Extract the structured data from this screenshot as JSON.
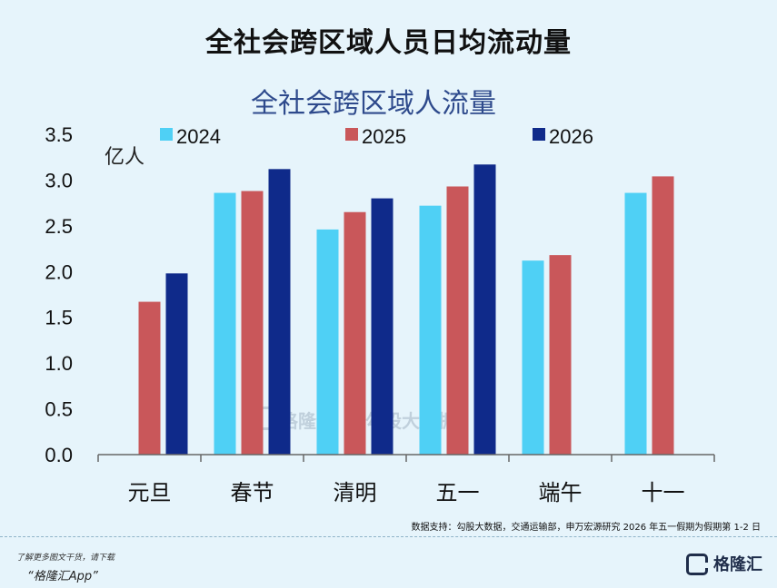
{
  "page_title": "全社会跨区域人员日均流动量",
  "source_note": "数据支持：勾股大数据，交通运输部，申万宏源研究  2026 年五一假期为假期第 1-2 日",
  "footer": {
    "line1": "了解更多图文干货，请下载",
    "line2": "“格隆汇App”",
    "logo_text": "格隆汇"
  },
  "watermark": {
    "brand": "格隆汇",
    "partner": "勾股大数据"
  },
  "colors": {
    "2024": "#4fd0f5",
    "2025": "#c9575a",
    "2026": "#0f2a8a"
  },
  "chart_data": {
    "type": "bar",
    "title": "全社会跨区域人流量",
    "ylabel": "亿人",
    "xlabel": "",
    "ylim": [
      0,
      3.5
    ],
    "yticks": [
      "0.0",
      "0.5",
      "1.0",
      "1.5",
      "2.0",
      "2.5",
      "3.0",
      "3.5"
    ],
    "legend_position": "top",
    "categories": [
      "元旦",
      "春节",
      "清明",
      "五一",
      "端午",
      "十一"
    ],
    "series": [
      {
        "name": "2024",
        "values": [
          null,
          2.86,
          2.46,
          2.72,
          2.12,
          2.86
        ]
      },
      {
        "name": "2025",
        "values": [
          1.67,
          2.88,
          2.65,
          2.93,
          2.18,
          3.04
        ]
      },
      {
        "name": "2026",
        "values": [
          1.98,
          3.12,
          2.8,
          3.17,
          null,
          null
        ]
      }
    ]
  }
}
